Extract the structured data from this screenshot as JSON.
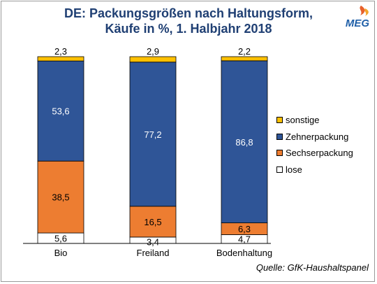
{
  "title_line1": "DE: Packungsgrößen nach Haltungsform,",
  "title_line2": "Käufe in %, 1. Halbjahr 2018",
  "logo_text": "MEG",
  "source": "Quelle: GfK-Haushaltspanel",
  "colors": {
    "lose": "#ffffff",
    "sechserpackung": "#ed7d31",
    "zehnerpackung": "#2f5597",
    "sonstige": "#ffc000",
    "title": "#1f3f73"
  },
  "chart_data": {
    "type": "bar",
    "stacked": true,
    "percent": true,
    "categories": [
      "Bio",
      "Freiland",
      "Bodenhaltung"
    ],
    "series": [
      {
        "name": "lose",
        "values": [
          5.6,
          3.4,
          4.7
        ],
        "labels": [
          "5,6",
          "3,4",
          "4,7"
        ]
      },
      {
        "name": "Sechserpackung",
        "values": [
          38.5,
          16.5,
          6.3
        ],
        "labels": [
          "38,5",
          "16,5",
          "6,3"
        ]
      },
      {
        "name": "Zehnerpackung",
        "values": [
          53.6,
          77.2,
          86.8
        ],
        "labels": [
          "53,6",
          "77,2",
          "86,8"
        ]
      },
      {
        "name": "sonstige",
        "values": [
          2.3,
          2.9,
          2.2
        ],
        "labels": [
          "2,3",
          "2,9",
          "2,2"
        ]
      }
    ],
    "ylim": [
      0,
      100
    ],
    "grid": false,
    "legend_position": "right",
    "legend_order": [
      "sonstige",
      "Zehnerpackung",
      "Sechserpackung",
      "lose"
    ]
  }
}
